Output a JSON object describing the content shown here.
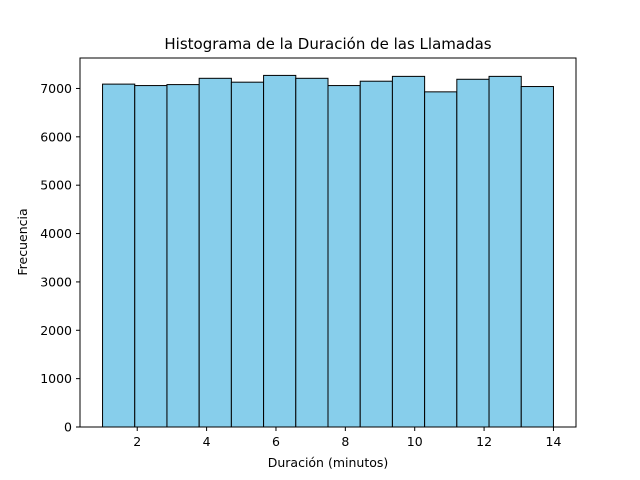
{
  "chart_data": {
    "type": "bar",
    "title": "Histograma de la Duración de las Llamadas",
    "xlabel": "Duración (minutos)",
    "ylabel": "Frecuencia",
    "xlim": [
      0.35,
      14.65
    ],
    "ylim": [
      0,
      7630
    ],
    "xticks": [
      2,
      4,
      6,
      8,
      10,
      12,
      14
    ],
    "yticks": [
      0,
      1000,
      2000,
      3000,
      4000,
      5000,
      6000,
      7000
    ],
    "bin_edges": [
      1,
      1.9286,
      2.8571,
      3.7857,
      4.7143,
      5.6429,
      6.5714,
      7.5,
      8.4286,
      9.3571,
      10.2857,
      11.2143,
      12.1429,
      13.0714,
      14
    ],
    "values": [
      7090,
      7060,
      7080,
      7210,
      7130,
      7270,
      7210,
      7060,
      7150,
      7250,
      6930,
      7190,
      7250,
      7040
    ],
    "bar_color": "#87ceeb",
    "edge_color": "#000000",
    "grid": false
  }
}
